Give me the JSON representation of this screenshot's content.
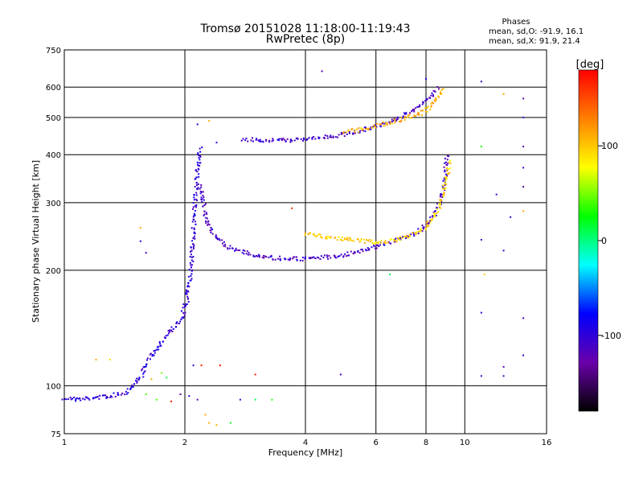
{
  "header": {
    "title": "Tromsø 20151028 11:18:00-11:19:43",
    "subtitle": "RwPretec (8p)"
  },
  "phases_box": {
    "title": "Phases",
    "o_line": "mean, sd,O: -91.9, 16.1",
    "x_line": "mean, sd,X:  91.9, 21.4"
  },
  "colorbar": {
    "label": "[deg]",
    "range": [
      -180,
      180
    ],
    "ticks": [
      {
        "value": 100,
        "label": "100"
      },
      {
        "value": 0,
        "label": "0"
      },
      {
        "value": -100,
        "label": "-100"
      }
    ],
    "colors": [
      "#000000",
      "#6a00aa",
      "#0000ff",
      "#00ffff",
      "#00ff00",
      "#ffff00",
      "#ff8000",
      "#ff0000"
    ]
  },
  "chart_data": {
    "type": "scatter",
    "title": "Tromsø 20151028 11:18:00-11:19:43",
    "subtitle": "RwPretec (8p)",
    "xlabel": "Frequency [MHz]",
    "ylabel": "Stationary phase Virtual Height [km]",
    "xscale": "log",
    "yscale": "log",
    "xlim": [
      1,
      16
    ],
    "ylim": [
      75,
      750
    ],
    "xticks": [
      {
        "value": 1,
        "label": "1"
      },
      {
        "value": 2,
        "label": "2"
      },
      {
        "value": 4,
        "label": "4"
      },
      {
        "value": 6,
        "label": "6"
      },
      {
        "value": 8,
        "label": "8"
      },
      {
        "value": 10,
        "label": "10"
      },
      {
        "value": 16,
        "label": "16"
      }
    ],
    "yticks": [
      {
        "value": 75,
        "label": "75"
      },
      {
        "value": 100,
        "label": "100"
      },
      {
        "value": 200,
        "label": "200"
      },
      {
        "value": 300,
        "label": "300"
      },
      {
        "value": 400,
        "label": "400"
      },
      {
        "value": 500,
        "label": "500"
      },
      {
        "value": 600,
        "label": "600"
      },
      {
        "value": 750,
        "label": "750"
      }
    ],
    "grid": true,
    "color_key": "phase [deg]",
    "traces": [
      {
        "x": [
          1.0,
          1.08,
          1.18,
          1.3,
          1.42,
          1.55,
          1.65,
          1.75,
          1.85,
          1.95,
          2.02,
          2.07,
          2.1,
          2.13,
          2.16,
          2.19
        ],
        "y": [
          93,
          92,
          93,
          94,
          96,
          105,
          120,
          130,
          140,
          148,
          165,
          200,
          250,
          320,
          380,
          420
        ],
        "phase": -100
      },
      {
        "x": [
          2.2,
          2.25,
          2.35,
          2.5,
          2.7,
          3.0,
          3.4,
          3.8,
          4.2,
          4.7,
          5.3,
          5.8,
          6.3,
          6.8,
          7.3,
          7.8,
          8.2,
          8.5,
          8.7,
          8.85,
          8.95,
          9.05
        ],
        "y": [
          330,
          275,
          248,
          233,
          225,
          218,
          215,
          214,
          215,
          217,
          222,
          228,
          234,
          240,
          246,
          256,
          268,
          285,
          305,
          330,
          360,
          400
        ],
        "phase": -110
      },
      {
        "x": [
          4.0,
          4.4,
          4.8,
          5.2,
          5.6,
          6.0,
          6.4,
          6.8,
          7.2,
          7.6,
          8.0,
          8.3,
          8.6,
          8.8,
          9.0,
          9.15
        ],
        "y": [
          250,
          245,
          242,
          240,
          238,
          236,
          238,
          240,
          245,
          252,
          260,
          272,
          290,
          315,
          345,
          385
        ],
        "phase": 95
      },
      {
        "x": [
          2.8,
          3.0,
          3.3,
          3.6,
          3.9,
          4.2,
          4.6,
          5.0,
          5.4,
          5.8,
          6.2,
          6.6,
          7.0,
          7.4,
          7.8,
          8.1,
          8.4,
          8.6
        ],
        "y": [
          437,
          437,
          436,
          436,
          437,
          440,
          445,
          452,
          460,
          470,
          480,
          492,
          506,
          520,
          540,
          560,
          580,
          600
        ],
        "phase": -110
      },
      {
        "x": [
          5.0,
          5.5,
          6.0,
          6.5,
          7.0,
          7.5,
          8.0,
          8.4,
          8.7,
          8.9
        ],
        "y": [
          458,
          465,
          475,
          485,
          496,
          505,
          520,
          550,
          580,
          600
        ],
        "phase": 110
      }
    ],
    "points": [
      {
        "x": 4.4,
        "y": 660,
        "phase": -110
      },
      {
        "x": 8.0,
        "y": 630,
        "phase": -100
      },
      {
        "x": 11.0,
        "y": 620,
        "phase": -100
      },
      {
        "x": 12.5,
        "y": 575,
        "phase": 110
      },
      {
        "x": 14.0,
        "y": 560,
        "phase": -130
      },
      {
        "x": 14.0,
        "y": 500,
        "phase": -110
      },
      {
        "x": 14.0,
        "y": 420,
        "phase": -120
      },
      {
        "x": 11.0,
        "y": 420,
        "phase": 30
      },
      {
        "x": 14.0,
        "y": 370,
        "phase": -110
      },
      {
        "x": 14.0,
        "y": 330,
        "phase": -140
      },
      {
        "x": 12.0,
        "y": 315,
        "phase": -110
      },
      {
        "x": 13.0,
        "y": 275,
        "phase": -100
      },
      {
        "x": 14.0,
        "y": 285,
        "phase": 110
      },
      {
        "x": 11.0,
        "y": 240,
        "phase": -110
      },
      {
        "x": 12.5,
        "y": 225,
        "phase": -100
      },
      {
        "x": 11.2,
        "y": 195,
        "phase": 100
      },
      {
        "x": 6.5,
        "y": 195,
        "phase": 10
      },
      {
        "x": 3.7,
        "y": 290,
        "phase": 160
      },
      {
        "x": 1.55,
        "y": 258,
        "phase": 110
      },
      {
        "x": 1.55,
        "y": 238,
        "phase": -100
      },
      {
        "x": 1.6,
        "y": 222,
        "phase": -110
      },
      {
        "x": 11.0,
        "y": 155,
        "phase": -100
      },
      {
        "x": 14.0,
        "y": 150,
        "phase": -110
      },
      {
        "x": 14.0,
        "y": 120,
        "phase": -100
      },
      {
        "x": 12.5,
        "y": 112,
        "phase": -120
      },
      {
        "x": 12.5,
        "y": 106,
        "phase": -110
      },
      {
        "x": 11.0,
        "y": 106,
        "phase": -110
      },
      {
        "x": 4.9,
        "y": 107,
        "phase": -110
      },
      {
        "x": 1.2,
        "y": 117,
        "phase": 110
      },
      {
        "x": 1.3,
        "y": 117,
        "phase": 90
      },
      {
        "x": 1.75,
        "y": 108,
        "phase": 50
      },
      {
        "x": 1.8,
        "y": 105,
        "phase": 10
      },
      {
        "x": 2.1,
        "y": 113,
        "phase": -100
      },
      {
        "x": 2.2,
        "y": 113,
        "phase": 170
      },
      {
        "x": 2.45,
        "y": 113,
        "phase": 170
      },
      {
        "x": 3.0,
        "y": 107,
        "phase": 170
      },
      {
        "x": 1.65,
        "y": 104,
        "phase": 110
      },
      {
        "x": 1.6,
        "y": 95,
        "phase": 40
      },
      {
        "x": 1.7,
        "y": 92,
        "phase": 40
      },
      {
        "x": 1.85,
        "y": 91,
        "phase": 170
      },
      {
        "x": 1.95,
        "y": 95,
        "phase": -130
      },
      {
        "x": 2.05,
        "y": 94,
        "phase": -100
      },
      {
        "x": 2.15,
        "y": 92,
        "phase": -120
      },
      {
        "x": 2.75,
        "y": 92,
        "phase": -110
      },
      {
        "x": 3.0,
        "y": 92,
        "phase": 10
      },
      {
        "x": 3.3,
        "y": 92,
        "phase": 30
      },
      {
        "x": 2.25,
        "y": 84,
        "phase": 110
      },
      {
        "x": 2.3,
        "y": 80,
        "phase": 110
      },
      {
        "x": 2.4,
        "y": 79,
        "phase": 110
      },
      {
        "x": 2.6,
        "y": 80,
        "phase": 20
      },
      {
        "x": 2.3,
        "y": 490,
        "phase": 110
      },
      {
        "x": 2.15,
        "y": 480,
        "phase": -100
      },
      {
        "x": 2.4,
        "y": 430,
        "phase": -100
      }
    ]
  }
}
